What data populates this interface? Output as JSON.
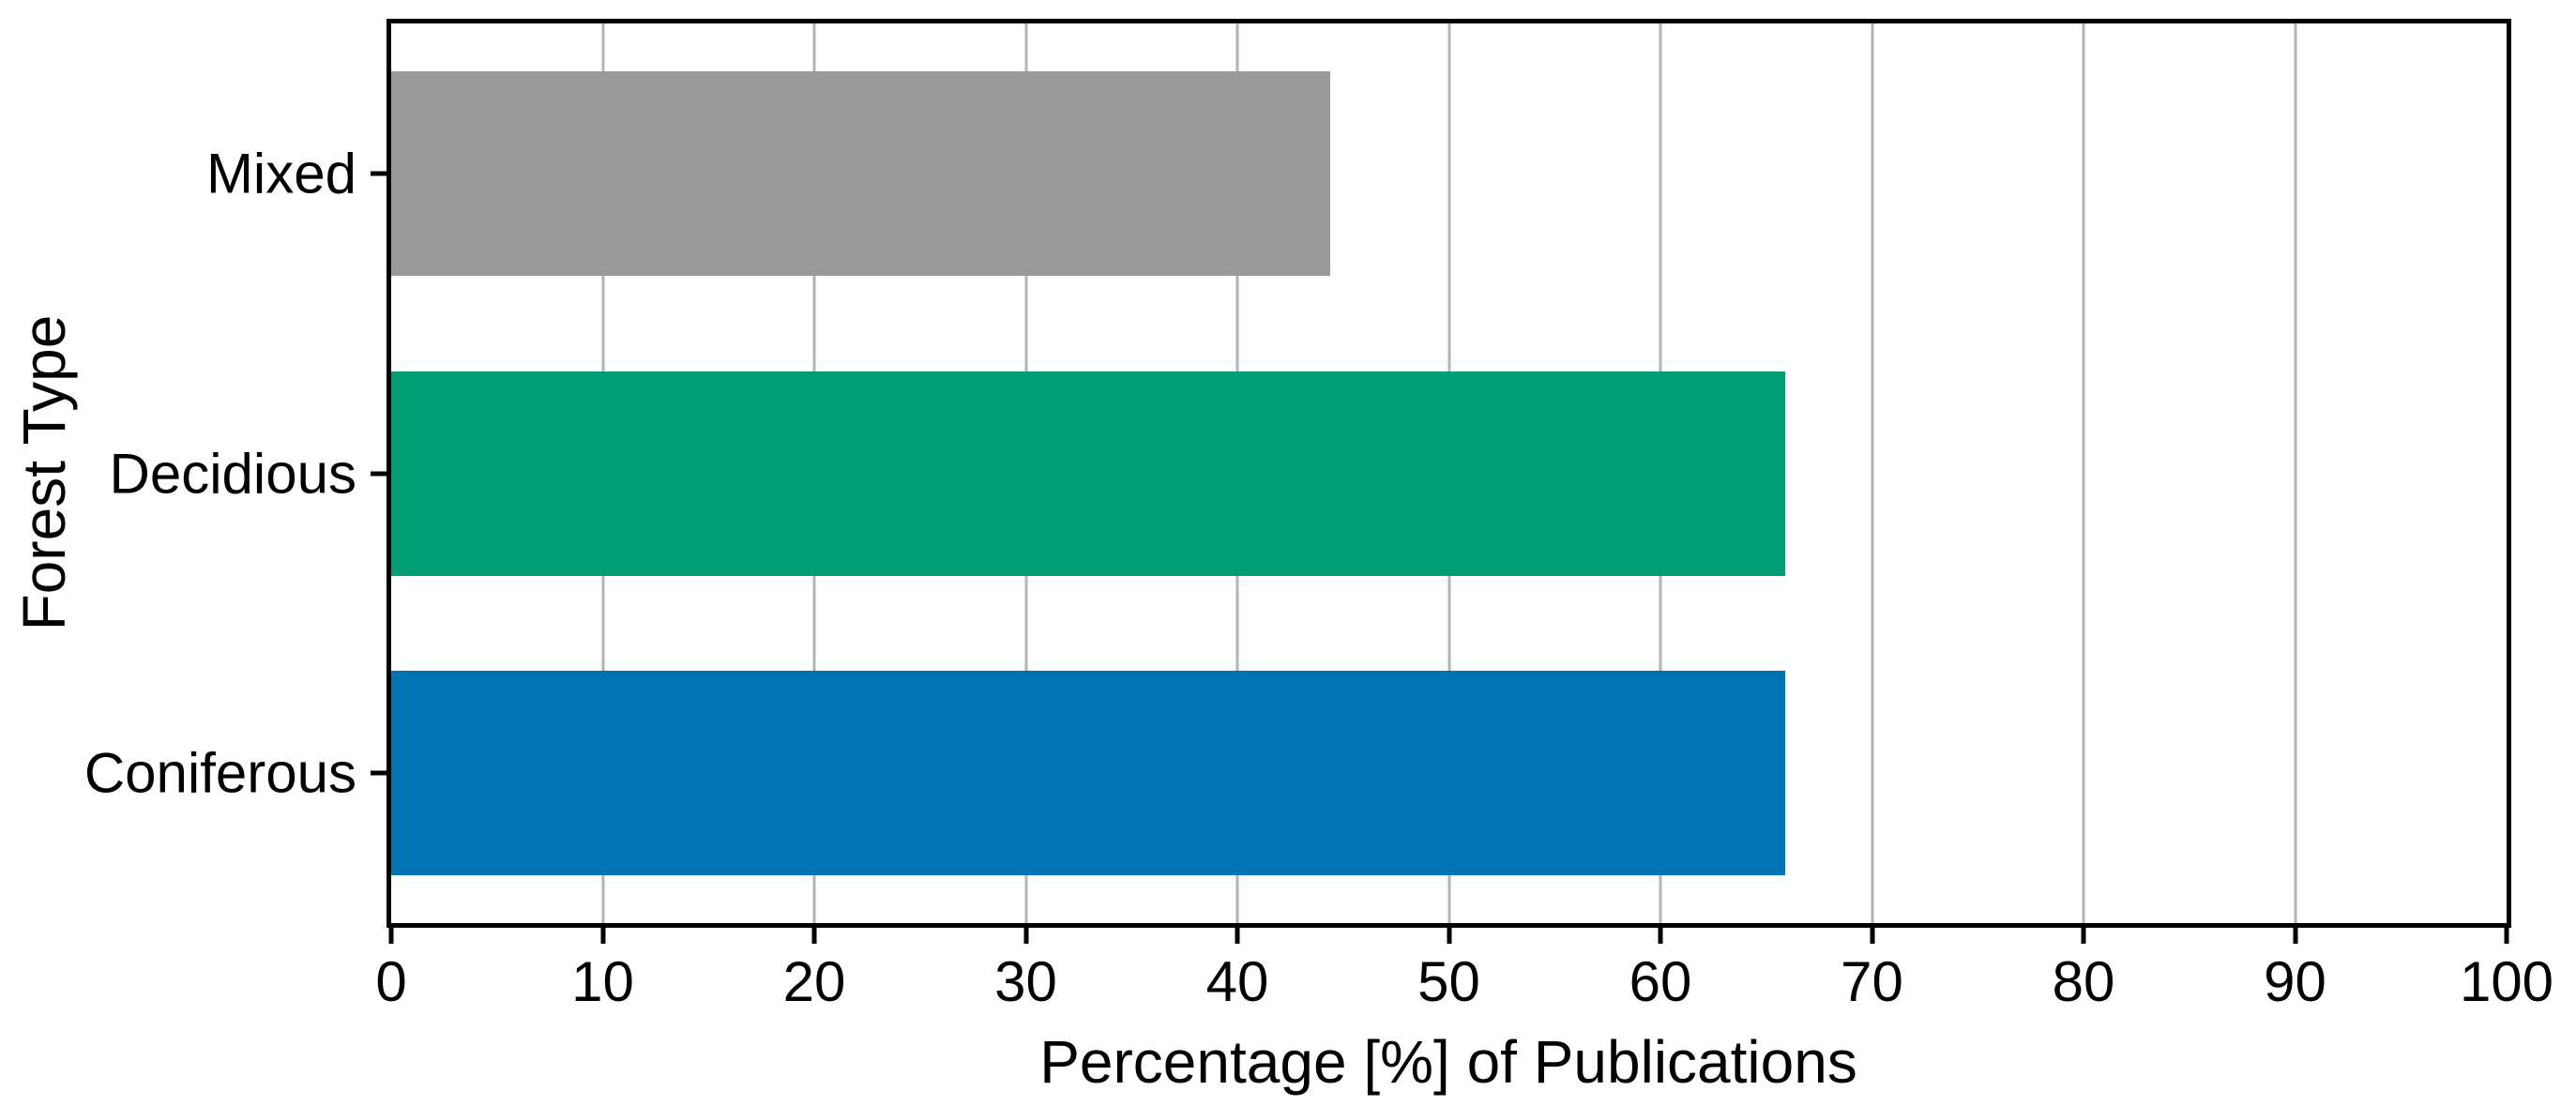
{
  "chart_data": {
    "type": "bar",
    "orientation": "horizontal",
    "title": "",
    "xlabel": "Percentage [%] of Publications",
    "ylabel": "Forest Type",
    "categories": [
      "Mixed",
      "Decidious",
      "Coniferous"
    ],
    "values": [
      44.4,
      65.9,
      65.9
    ],
    "bar_colors": [
      "#9a9a9a",
      "#029e73",
      "#0173b2"
    ],
    "xlim": [
      0,
      100
    ],
    "xticks": [
      0,
      10,
      20,
      30,
      40,
      50,
      60,
      70,
      80,
      90,
      100
    ],
    "grid": "vertical gridlines at every x tick",
    "gridline_color": "#b3b3b3",
    "spine_color": "#000000",
    "background_color": "#ffffff",
    "legend": "none"
  }
}
